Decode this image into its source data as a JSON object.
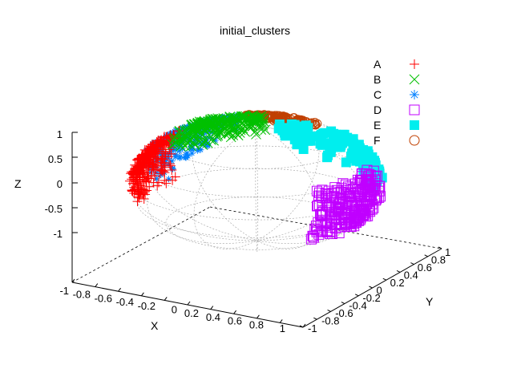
{
  "chart_data": {
    "type": "scatter",
    "title": "initial_clusters",
    "xlabel": "X",
    "ylabel": "Y",
    "zlabel": "Z",
    "xticks": [
      "-1",
      "-0.8",
      "-0.6",
      "-0.4",
      "-0.2",
      "0",
      "0.2",
      "0.4",
      "0.6",
      "0.8",
      "1"
    ],
    "yticks": [
      "-1",
      "-0.8",
      "-0.6",
      "-0.4",
      "-0.2",
      "0",
      "0.2",
      "0.4",
      "0.6",
      "0.8",
      "1"
    ],
    "zticks": [
      "1",
      "0.5",
      "0",
      "-0.5",
      "-1"
    ],
    "xlim": [
      -1,
      1
    ],
    "ylim": [
      -1,
      1
    ],
    "zlim": [
      -1,
      1
    ],
    "legend_position": "top-right",
    "series": [
      {
        "name": "A",
        "color": "#ff0000",
        "marker": "plus"
      },
      {
        "name": "B",
        "color": "#00c000",
        "marker": "cross"
      },
      {
        "name": "C",
        "color": "#0080ff",
        "marker": "asterisk"
      },
      {
        "name": "D",
        "color": "#c000ff",
        "marker": "open-square"
      },
      {
        "name": "E",
        "color": "#00eeee",
        "marker": "filled-square"
      },
      {
        "name": "F",
        "color": "#c04000",
        "marker": "open-circle"
      }
    ]
  }
}
